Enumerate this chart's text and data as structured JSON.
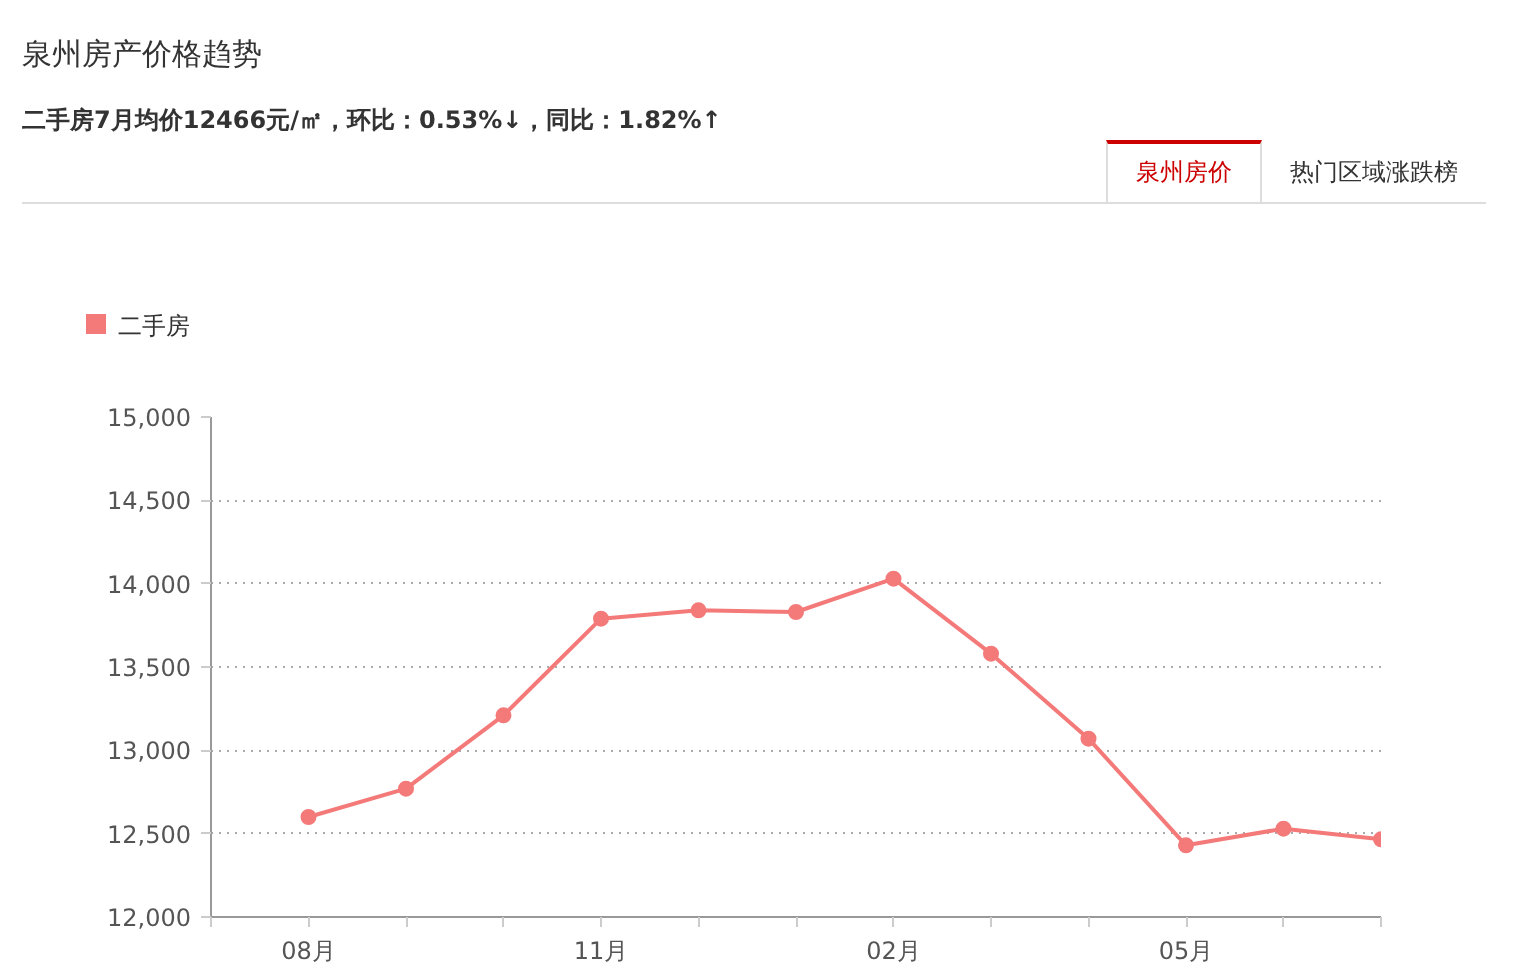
{
  "chart_data": {
    "type": "line",
    "title": "泉州房产价格趋势",
    "subtitle": "二手房7月均价12466元/㎡，环比：0.53%↓，同比：1.82%↑",
    "annotations": [
      "泉州房价",
      "热门区域涨跌榜"
    ],
    "categories": [
      "08月",
      null,
      null,
      "11月",
      null,
      null,
      "02月",
      null,
      null,
      "05月",
      null,
      null
    ],
    "series": [
      {
        "name": "二手房",
        "color": "#f47a7a",
        "values": [
          12600,
          12770,
          13210,
          13790,
          13840,
          13830,
          14030,
          13580,
          13070,
          12430,
          12530,
          12466
        ]
      }
    ],
    "ylim": [
      12000,
      15000
    ],
    "yticks": [
      {
        "value": 12000,
        "label": "12,000"
      },
      {
        "value": 12500,
        "label": "12,500"
      },
      {
        "value": 13000,
        "label": "13,000"
      },
      {
        "value": 13500,
        "label": "13,500"
      },
      {
        "value": 14000,
        "label": "14,000"
      },
      {
        "value": 14500,
        "label": "14,500"
      },
      {
        "value": 15000,
        "label": "15,000"
      }
    ],
    "grid": "y",
    "legend": "top left",
    "marker": "circle",
    "line_style": "solid"
  }
}
